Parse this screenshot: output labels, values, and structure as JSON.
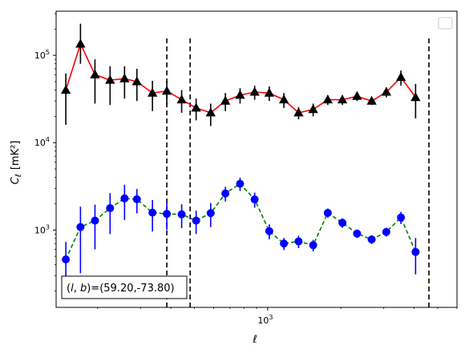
{
  "chart_data": {
    "type": "line",
    "xlabel": "ℓ",
    "ylabel_main": "C",
    "ylabel_sub": "ℓ",
    "ylabel_unit": "[mK²]",
    "xscale": "log",
    "yscale": "log",
    "xlim": [
      135,
      6000
    ],
    "ylim": [
      130,
      320000
    ],
    "x_ticks": [
      {
        "value": 1000,
        "base": "10",
        "exp": "3"
      }
    ],
    "y_ticks": [
      {
        "value": 1000,
        "base": "10",
        "exp": "3"
      },
      {
        "value": 10000,
        "base": "10",
        "exp": "4"
      },
      {
        "value": 100000,
        "base": "10",
        "exp": "5"
      }
    ],
    "vlines": [
      385,
      480,
      4600
    ],
    "legend": "top-right, empty",
    "annotation": "(l, b)=(59.20,-73.80)",
    "series": [
      {
        "color": "#ff0000",
        "marker": "triangle",
        "marker_color": "#000000",
        "errorbar_color": "#000000",
        "linestyle": "solid",
        "points": [
          {
            "x": 148,
            "y": 40000,
            "lo": 16000,
            "hi": 62000
          },
          {
            "x": 170,
            "y": 135000,
            "lo": 80000,
            "hi": 230000
          },
          {
            "x": 195,
            "y": 60000,
            "lo": 28000,
            "hi": 90000
          },
          {
            "x": 225,
            "y": 52000,
            "lo": 27000,
            "hi": 75000
          },
          {
            "x": 258,
            "y": 54000,
            "lo": 32000,
            "hi": 75000
          },
          {
            "x": 290,
            "y": 50000,
            "lo": 30000,
            "hi": 70000
          },
          {
            "x": 336,
            "y": 37000,
            "lo": 23000,
            "hi": 51000
          },
          {
            "x": 385,
            "y": 39000,
            "lo": 27000,
            "hi": 51000
          },
          {
            "x": 443,
            "y": 31000,
            "lo": 22000,
            "hi": 40000
          },
          {
            "x": 508,
            "y": 25000,
            "lo": 18000,
            "hi": 32000
          },
          {
            "x": 583,
            "y": 22000,
            "lo": 15500,
            "hi": 28000
          },
          {
            "x": 670,
            "y": 30000,
            "lo": 23000,
            "hi": 37000
          },
          {
            "x": 770,
            "y": 35000,
            "lo": 28000,
            "hi": 42000
          },
          {
            "x": 884,
            "y": 38000,
            "lo": 31000,
            "hi": 45000
          },
          {
            "x": 1015,
            "y": 37000,
            "lo": 30000,
            "hi": 44000
          },
          {
            "x": 1166,
            "y": 31000,
            "lo": 25000,
            "hi": 37000
          },
          {
            "x": 1340,
            "y": 22000,
            "lo": 18500,
            "hi": 25500
          },
          {
            "x": 1538,
            "y": 24000,
            "lo": 20000,
            "hi": 28000
          },
          {
            "x": 1766,
            "y": 31000,
            "lo": 27000,
            "hi": 35000
          },
          {
            "x": 2028,
            "y": 31000,
            "lo": 27000,
            "hi": 35000
          },
          {
            "x": 2330,
            "y": 34000,
            "lo": 30000,
            "hi": 38000
          },
          {
            "x": 2676,
            "y": 30000,
            "lo": 27000,
            "hi": 33000
          },
          {
            "x": 3074,
            "y": 38000,
            "lo": 33000,
            "hi": 43000
          },
          {
            "x": 3530,
            "y": 56000,
            "lo": 45000,
            "hi": 67000
          },
          {
            "x": 4055,
            "y": 33000,
            "lo": 19000,
            "hi": 47000
          }
        ]
      },
      {
        "color": "#008000",
        "marker": "circle",
        "marker_color": "#0000ff",
        "errorbar_color": "#0000ff",
        "linestyle": "dashed",
        "points": [
          {
            "x": 148,
            "y": 460,
            "lo": 230,
            "hi": 730
          },
          {
            "x": 170,
            "y": 1080,
            "lo": 320,
            "hi": 1850
          },
          {
            "x": 195,
            "y": 1280,
            "lo": 600,
            "hi": 1950
          },
          {
            "x": 225,
            "y": 1780,
            "lo": 900,
            "hi": 2650
          },
          {
            "x": 258,
            "y": 2300,
            "lo": 1300,
            "hi": 3300
          },
          {
            "x": 290,
            "y": 2250,
            "lo": 1550,
            "hi": 2950
          },
          {
            "x": 336,
            "y": 1580,
            "lo": 960,
            "hi": 2200
          },
          {
            "x": 385,
            "y": 1530,
            "lo": 1000,
            "hi": 2060
          },
          {
            "x": 443,
            "y": 1510,
            "lo": 1050,
            "hi": 1970
          },
          {
            "x": 508,
            "y": 1280,
            "lo": 900,
            "hi": 1660
          },
          {
            "x": 583,
            "y": 1560,
            "lo": 1080,
            "hi": 2040
          },
          {
            "x": 670,
            "y": 2620,
            "lo": 2120,
            "hi": 3120
          },
          {
            "x": 770,
            "y": 3380,
            "lo": 2800,
            "hi": 3960
          },
          {
            "x": 884,
            "y": 2240,
            "lo": 1800,
            "hi": 2680
          },
          {
            "x": 1015,
            "y": 970,
            "lo": 780,
            "hi": 1160
          },
          {
            "x": 1166,
            "y": 700,
            "lo": 590,
            "hi": 810
          },
          {
            "x": 1340,
            "y": 740,
            "lo": 620,
            "hi": 860
          },
          {
            "x": 1538,
            "y": 670,
            "lo": 570,
            "hi": 770
          },
          {
            "x": 1766,
            "y": 1570,
            "lo": 1380,
            "hi": 1760
          },
          {
            "x": 2028,
            "y": 1210,
            "lo": 1060,
            "hi": 1360
          },
          {
            "x": 2330,
            "y": 910,
            "lo": 810,
            "hi": 1010
          },
          {
            "x": 2676,
            "y": 780,
            "lo": 690,
            "hi": 870
          },
          {
            "x": 3074,
            "y": 950,
            "lo": 840,
            "hi": 1060
          },
          {
            "x": 3530,
            "y": 1390,
            "lo": 1170,
            "hi": 1610
          },
          {
            "x": 4055,
            "y": 560,
            "lo": 310,
            "hi": 810
          }
        ]
      }
    ]
  },
  "colors": {
    "axes": "#000000",
    "vline": "#000000",
    "legend_border": "#cccccc"
  }
}
